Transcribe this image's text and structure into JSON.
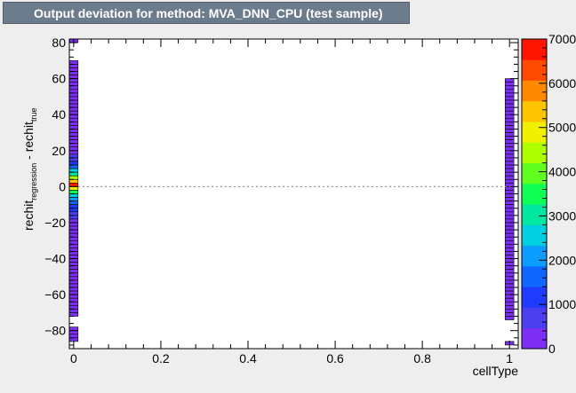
{
  "chart_data": {
    "type": "heatmap",
    "title": "Output deviation for method: MVA_DNN_CPU (test sample)",
    "xlabel": "cellType",
    "ylabel_main": "rechit",
    "ylabel_sub1": "regression",
    "ylabel_mid": " - rechit",
    "ylabel_sub2": "true",
    "xlim": [
      -0.01,
      1.02
    ],
    "ylim": [
      -90,
      82
    ],
    "x_ticks": [
      {
        "value": 0,
        "label": "0"
      },
      {
        "value": 0.2,
        "label": "0.2"
      },
      {
        "value": 0.4,
        "label": "0.4"
      },
      {
        "value": 0.6,
        "label": "0.6"
      },
      {
        "value": 0.8,
        "label": "0.8"
      },
      {
        "value": 1,
        "label": "1"
      }
    ],
    "y_ticks": [
      {
        "value": 80,
        "label": "80"
      },
      {
        "value": 60,
        "label": "60"
      },
      {
        "value": 40,
        "label": "40"
      },
      {
        "value": 20,
        "label": "20"
      },
      {
        "value": 0,
        "label": "0"
      },
      {
        "value": -20,
        "label": "−20"
      },
      {
        "value": -40,
        "label": "−40"
      },
      {
        "value": -60,
        "label": "−60"
      },
      {
        "value": -80,
        "label": "−80"
      }
    ],
    "bin_width_y": 2,
    "reference_line_y": 0,
    "columns": [
      {
        "x": 0,
        "width": 0.02,
        "cells": [
          {
            "y": 82,
            "value": 60
          },
          {
            "y": 70,
            "value": 80
          },
          {
            "y": 68,
            "value": 80
          },
          {
            "y": 66,
            "value": 80
          },
          {
            "y": 64,
            "value": 80
          },
          {
            "y": 62,
            "value": 80
          },
          {
            "y": 60,
            "value": 80
          },
          {
            "y": 58,
            "value": 80
          },
          {
            "y": 56,
            "value": 80
          },
          {
            "y": 54,
            "value": 80
          },
          {
            "y": 52,
            "value": 80
          },
          {
            "y": 50,
            "value": 80
          },
          {
            "y": 48,
            "value": 80
          },
          {
            "y": 46,
            "value": 80
          },
          {
            "y": 44,
            "value": 80
          },
          {
            "y": 42,
            "value": 80
          },
          {
            "y": 40,
            "value": 80
          },
          {
            "y": 38,
            "value": 80
          },
          {
            "y": 36,
            "value": 80
          },
          {
            "y": 34,
            "value": 80
          },
          {
            "y": 32,
            "value": 80
          },
          {
            "y": 30,
            "value": 100
          },
          {
            "y": 28,
            "value": 100
          },
          {
            "y": 26,
            "value": 150
          },
          {
            "y": 24,
            "value": 200
          },
          {
            "y": 22,
            "value": 300
          },
          {
            "y": 20,
            "value": 400
          },
          {
            "y": 18,
            "value": 600
          },
          {
            "y": 16,
            "value": 800
          },
          {
            "y": 14,
            "value": 1200
          },
          {
            "y": 12,
            "value": 1600
          },
          {
            "y": 10,
            "value": 2400
          },
          {
            "y": 8,
            "value": 3200
          },
          {
            "y": 6,
            "value": 4200
          },
          {
            "y": 4,
            "value": 5400
          },
          {
            "y": 2,
            "value": 6800
          },
          {
            "y": 0,
            "value": 5000
          },
          {
            "y": -2,
            "value": 3600
          },
          {
            "y": -4,
            "value": 2400
          },
          {
            "y": -6,
            "value": 1900
          },
          {
            "y": -8,
            "value": 1500
          },
          {
            "y": -10,
            "value": 1300
          },
          {
            "y": -12,
            "value": 1000
          },
          {
            "y": -14,
            "value": 800
          },
          {
            "y": -16,
            "value": 600
          },
          {
            "y": -18,
            "value": 450
          },
          {
            "y": -20,
            "value": 300
          },
          {
            "y": -22,
            "value": 200
          },
          {
            "y": -24,
            "value": 150
          },
          {
            "y": -26,
            "value": 100
          },
          {
            "y": -28,
            "value": 100
          },
          {
            "y": -30,
            "value": 80
          },
          {
            "y": -32,
            "value": 80
          },
          {
            "y": -34,
            "value": 80
          },
          {
            "y": -36,
            "value": 80
          },
          {
            "y": -38,
            "value": 80
          },
          {
            "y": -40,
            "value": 80
          },
          {
            "y": -42,
            "value": 80
          },
          {
            "y": -44,
            "value": 80
          },
          {
            "y": -46,
            "value": 80
          },
          {
            "y": -48,
            "value": 80
          },
          {
            "y": -50,
            "value": 80
          },
          {
            "y": -52,
            "value": 80
          },
          {
            "y": -54,
            "value": 80
          },
          {
            "y": -56,
            "value": 80
          },
          {
            "y": -58,
            "value": 80
          },
          {
            "y": -60,
            "value": 80
          },
          {
            "y": -62,
            "value": 80
          },
          {
            "y": -64,
            "value": 80
          },
          {
            "y": -66,
            "value": 80
          },
          {
            "y": -68,
            "value": 80
          },
          {
            "y": -70,
            "value": 80
          },
          {
            "y": -78,
            "value": 60
          },
          {
            "y": -80,
            "value": 60
          },
          {
            "y": -82,
            "value": 60
          },
          {
            "y": -84,
            "value": 60
          }
        ]
      },
      {
        "x": 1,
        "width": 0.02,
        "cells": [
          {
            "y": 60,
            "value": 40
          },
          {
            "y": 58,
            "value": 40
          },
          {
            "y": 56,
            "value": 40
          },
          {
            "y": 54,
            "value": 40
          },
          {
            "y": 52,
            "value": 40
          },
          {
            "y": 50,
            "value": 40
          },
          {
            "y": 48,
            "value": 40
          },
          {
            "y": 46,
            "value": 40
          },
          {
            "y": 44,
            "value": 40
          },
          {
            "y": 42,
            "value": 40
          },
          {
            "y": 40,
            "value": 40
          },
          {
            "y": 38,
            "value": 40
          },
          {
            "y": 36,
            "value": 40
          },
          {
            "y": 34,
            "value": 40
          },
          {
            "y": 32,
            "value": 40
          },
          {
            "y": 30,
            "value": 40
          },
          {
            "y": 28,
            "value": 40
          },
          {
            "y": 26,
            "value": 40
          },
          {
            "y": 24,
            "value": 40
          },
          {
            "y": 22,
            "value": 40
          },
          {
            "y": 20,
            "value": 40
          },
          {
            "y": 18,
            "value": 40
          },
          {
            "y": 16,
            "value": 40
          },
          {
            "y": 14,
            "value": 40
          },
          {
            "y": 12,
            "value": 40
          },
          {
            "y": 10,
            "value": 40
          },
          {
            "y": 8,
            "value": 40
          },
          {
            "y": 6,
            "value": 40
          },
          {
            "y": 4,
            "value": 40
          },
          {
            "y": 2,
            "value": 40
          },
          {
            "y": 0,
            "value": 40
          },
          {
            "y": -2,
            "value": 40
          },
          {
            "y": -4,
            "value": 40
          },
          {
            "y": -6,
            "value": 40
          },
          {
            "y": -8,
            "value": 40
          },
          {
            "y": -10,
            "value": 40
          },
          {
            "y": -12,
            "value": 40
          },
          {
            "y": -14,
            "value": 40
          },
          {
            "y": -16,
            "value": 40
          },
          {
            "y": -18,
            "value": 40
          },
          {
            "y": -20,
            "value": 40
          },
          {
            "y": -22,
            "value": 40
          },
          {
            "y": -24,
            "value": 40
          },
          {
            "y": -26,
            "value": 40
          },
          {
            "y": -28,
            "value": 40
          },
          {
            "y": -30,
            "value": 40
          },
          {
            "y": -32,
            "value": 40
          },
          {
            "y": -34,
            "value": 40
          },
          {
            "y": -36,
            "value": 40
          },
          {
            "y": -38,
            "value": 40
          },
          {
            "y": -40,
            "value": 40
          },
          {
            "y": -42,
            "value": 40
          },
          {
            "y": -44,
            "value": 40
          },
          {
            "y": -46,
            "value": 40
          },
          {
            "y": -48,
            "value": 40
          },
          {
            "y": -50,
            "value": 40
          },
          {
            "y": -52,
            "value": 40
          },
          {
            "y": -54,
            "value": 40
          },
          {
            "y": -56,
            "value": 40
          },
          {
            "y": -58,
            "value": 40
          },
          {
            "y": -60,
            "value": 40
          },
          {
            "y": -62,
            "value": 40
          },
          {
            "y": -64,
            "value": 40
          },
          {
            "y": -66,
            "value": 40
          },
          {
            "y": -68,
            "value": 40
          },
          {
            "y": -70,
            "value": 40
          },
          {
            "y": -72,
            "value": 40
          },
          {
            "y": -86,
            "value": 40
          }
        ]
      }
    ],
    "colorbar": {
      "min": 0,
      "max": 7000,
      "palette": [
        "#7d2ff5",
        "#4b3ff0",
        "#1f3bff",
        "#1066ff",
        "#0a9dff",
        "#00cfe0",
        "#00e8a0",
        "#10ff55",
        "#60ff20",
        "#b0ff00",
        "#f0f000",
        "#ffc400",
        "#ff8a00",
        "#ff4a00",
        "#ff1500"
      ],
      "ticks": [
        {
          "value": 0,
          "label": "0"
        },
        {
          "value": 1000,
          "label": "1000"
        },
        {
          "value": 2000,
          "label": "2000"
        },
        {
          "value": 3000,
          "label": "3000"
        },
        {
          "value": 4000,
          "label": "4000"
        },
        {
          "value": 5000,
          "label": "5000"
        },
        {
          "value": 6000,
          "label": "6000"
        },
        {
          "value": 7000,
          "label": "7000"
        }
      ]
    }
  }
}
